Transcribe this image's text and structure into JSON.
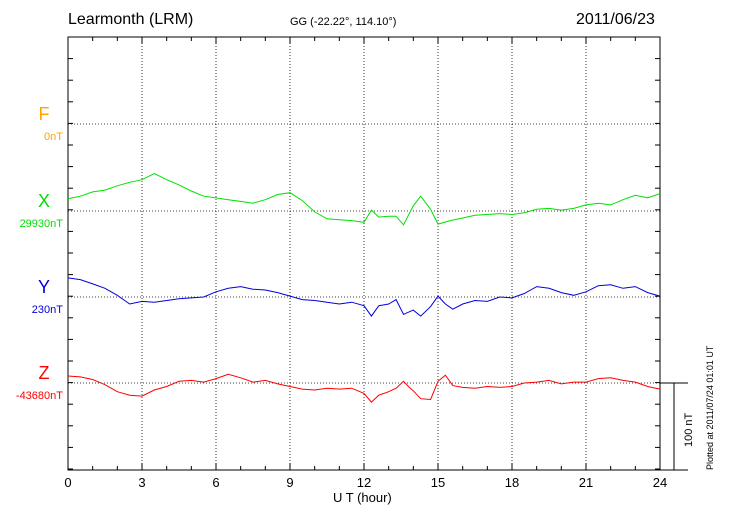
{
  "header": {
    "station": "Learmonth (LRM)",
    "coords": "GG (-22.22°, 114.10°)",
    "date": "2011/06/23"
  },
  "footer": {
    "plotted": "Plotted at 2011/07/24 01:01  UT"
  },
  "chart_data": {
    "type": "line",
    "xlabel": "U T (hour)",
    "xlim": [
      0,
      24
    ],
    "xticks": [
      "0",
      "3",
      "6",
      "9",
      "12",
      "15",
      "18",
      "21",
      "24"
    ],
    "scale_bar": "100 nT",
    "components": [
      {
        "name": "F",
        "baseline": "0nT",
        "color": "#ffa500",
        "values": []
      },
      {
        "name": "X",
        "baseline": "29930nT",
        "color": "#00e000",
        "values": [
          [
            0,
            14
          ],
          [
            0.5,
            17
          ],
          [
            1,
            22
          ],
          [
            1.5,
            24
          ],
          [
            2,
            29
          ],
          [
            2.5,
            33
          ],
          [
            3,
            36
          ],
          [
            3.5,
            43
          ],
          [
            4,
            36
          ],
          [
            4.5,
            30
          ],
          [
            5,
            23
          ],
          [
            5.5,
            17
          ],
          [
            6,
            15
          ],
          [
            6.5,
            13
          ],
          [
            7,
            11
          ],
          [
            7.5,
            9
          ],
          [
            8,
            13
          ],
          [
            8.5,
            19
          ],
          [
            9,
            21
          ],
          [
            9.5,
            12
          ],
          [
            10,
            -1
          ],
          [
            10.5,
            -9
          ],
          [
            11,
            -10
          ],
          [
            11.5,
            -11
          ],
          [
            12,
            -13
          ],
          [
            12.3,
            1
          ],
          [
            12.6,
            -7
          ],
          [
            13,
            -6
          ],
          [
            13.3,
            -6
          ],
          [
            13.6,
            -16
          ],
          [
            14,
            6
          ],
          [
            14.3,
            17
          ],
          [
            14.7,
            2
          ],
          [
            15,
            -15
          ],
          [
            15.5,
            -11
          ],
          [
            16,
            -8
          ],
          [
            16.5,
            -5
          ],
          [
            17,
            -4
          ],
          [
            17.5,
            -3
          ],
          [
            18,
            -4
          ],
          [
            18.5,
            -2
          ],
          [
            19,
            2
          ],
          [
            19.5,
            3
          ],
          [
            20,
            1
          ],
          [
            20.5,
            3
          ],
          [
            21,
            7
          ],
          [
            21.5,
            9
          ],
          [
            22,
            7
          ],
          [
            22.5,
            13
          ],
          [
            23,
            18
          ],
          [
            23.5,
            15
          ],
          [
            24,
            20
          ]
        ]
      },
      {
        "name": "Y",
        "baseline": "230nT",
        "color": "#0000e0",
        "values": [
          [
            0,
            22
          ],
          [
            0.5,
            20
          ],
          [
            1,
            15
          ],
          [
            1.5,
            10
          ],
          [
            2,
            2
          ],
          [
            2.5,
            -8
          ],
          [
            3,
            -5
          ],
          [
            3.5,
            -6
          ],
          [
            4,
            -4
          ],
          [
            4.5,
            -2
          ],
          [
            5,
            -1
          ],
          [
            5.5,
            0
          ],
          [
            6,
            6
          ],
          [
            6.5,
            10
          ],
          [
            7,
            12
          ],
          [
            7.5,
            9
          ],
          [
            8,
            8
          ],
          [
            8.5,
            5
          ],
          [
            9,
            1
          ],
          [
            9.5,
            -3
          ],
          [
            10,
            -4
          ],
          [
            10.5,
            -6
          ],
          [
            11,
            -8
          ],
          [
            11.5,
            -6
          ],
          [
            12,
            -10
          ],
          [
            12.3,
            -22
          ],
          [
            12.6,
            -10
          ],
          [
            13,
            -8
          ],
          [
            13.3,
            -3
          ],
          [
            13.6,
            -20
          ],
          [
            14,
            -15
          ],
          [
            14.3,
            -22
          ],
          [
            14.7,
            -11
          ],
          [
            15,
            1
          ],
          [
            15.3,
            -8
          ],
          [
            15.6,
            -14
          ],
          [
            16,
            -8
          ],
          [
            16.5,
            -4
          ],
          [
            17,
            -5
          ],
          [
            17.5,
            0
          ],
          [
            18,
            -1
          ],
          [
            18.5,
            4
          ],
          [
            19,
            12
          ],
          [
            19.5,
            10
          ],
          [
            20,
            5
          ],
          [
            20.5,
            2
          ],
          [
            21,
            6
          ],
          [
            21.5,
            13
          ],
          [
            22,
            14
          ],
          [
            22.5,
            10
          ],
          [
            23,
            12
          ],
          [
            23.5,
            5
          ],
          [
            24,
            1
          ]
        ]
      },
      {
        "name": "Z",
        "baseline": "-43680nT",
        "color": "#ff0000",
        "values": [
          [
            0,
            8
          ],
          [
            0.5,
            7
          ],
          [
            1,
            4
          ],
          [
            1.5,
            -2
          ],
          [
            2,
            -10
          ],
          [
            2.5,
            -14
          ],
          [
            3,
            -15
          ],
          [
            3.5,
            -8
          ],
          [
            4,
            -4
          ],
          [
            4.5,
            2
          ],
          [
            5,
            3
          ],
          [
            5.5,
            1
          ],
          [
            6,
            5
          ],
          [
            6.5,
            10
          ],
          [
            7,
            6
          ],
          [
            7.5,
            1
          ],
          [
            8,
            3
          ],
          [
            8.5,
            -1
          ],
          [
            9,
            -4
          ],
          [
            9.5,
            -7
          ],
          [
            10,
            -8
          ],
          [
            10.5,
            -6
          ],
          [
            11,
            -7
          ],
          [
            11.5,
            -6
          ],
          [
            12,
            -12
          ],
          [
            12.3,
            -22
          ],
          [
            12.6,
            -14
          ],
          [
            13,
            -10
          ],
          [
            13.3,
            -6
          ],
          [
            13.6,
            2
          ],
          [
            13.8,
            -4
          ],
          [
            14,
            -9
          ],
          [
            14.3,
            -18
          ],
          [
            14.7,
            -19
          ],
          [
            15,
            2
          ],
          [
            15.3,
            9
          ],
          [
            15.6,
            -3
          ],
          [
            16,
            -5
          ],
          [
            16.5,
            -6
          ],
          [
            17,
            -4
          ],
          [
            17.5,
            -5
          ],
          [
            18,
            -4
          ],
          [
            18.5,
            0
          ],
          [
            19,
            1
          ],
          [
            19.5,
            3
          ],
          [
            20,
            -1
          ],
          [
            20.5,
            1
          ],
          [
            21,
            1
          ],
          [
            21.5,
            5
          ],
          [
            22,
            6
          ],
          [
            22.5,
            3
          ],
          [
            23,
            1
          ],
          [
            23.5,
            -4
          ],
          [
            24,
            -7
          ]
        ]
      }
    ]
  }
}
